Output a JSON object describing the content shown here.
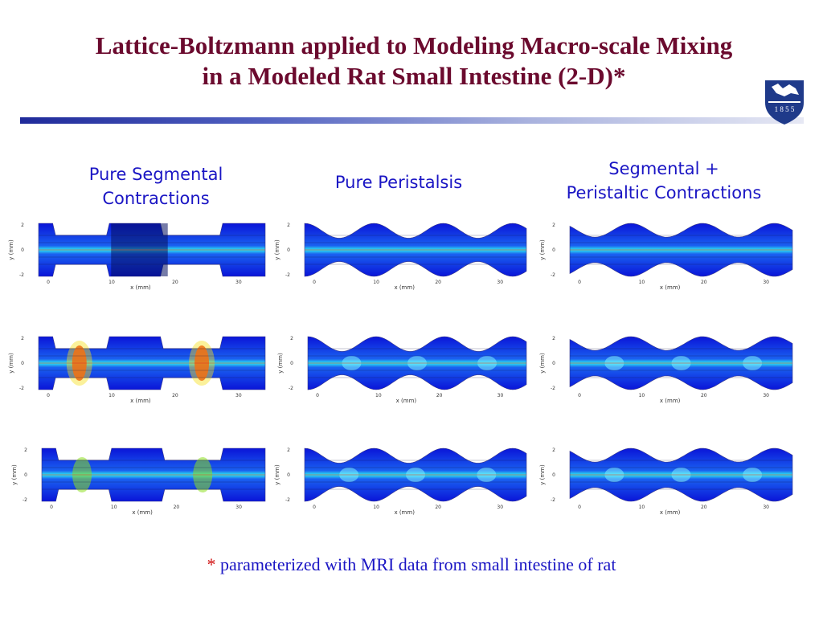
{
  "title": {
    "line1": "Lattice-Boltzmann applied to Modeling Macro-scale Mixing",
    "line2": "in a Modeled Rat Small Intestine (2-D)*"
  },
  "logo": {
    "year": "1 8 5 5",
    "icon": "university-shield-icon"
  },
  "columns": [
    {
      "line1": "Pure Segmental",
      "line2": "Contractions"
    },
    {
      "line1": "Pure Peristalsis",
      "line2": ""
    },
    {
      "line1": "Segmental +",
      "line2": "Peristaltic Contractions"
    }
  ],
  "axes": {
    "ylabel": "y (mm)",
    "xlabel": "x (mm)",
    "yticks": [
      "2",
      "0",
      "-2"
    ],
    "xticks": [
      "0",
      "10",
      "20",
      "30"
    ]
  },
  "footnote": {
    "star": "*",
    "text": " parameterized with MRI data from small intestine of rat"
  },
  "colors": {
    "title": "#6b0a2e",
    "heading": "#1a15c4",
    "fluid_low": "#0a14d8",
    "fluid_mid": "#2ee8f0",
    "fluid_high": "#e61a10"
  }
}
